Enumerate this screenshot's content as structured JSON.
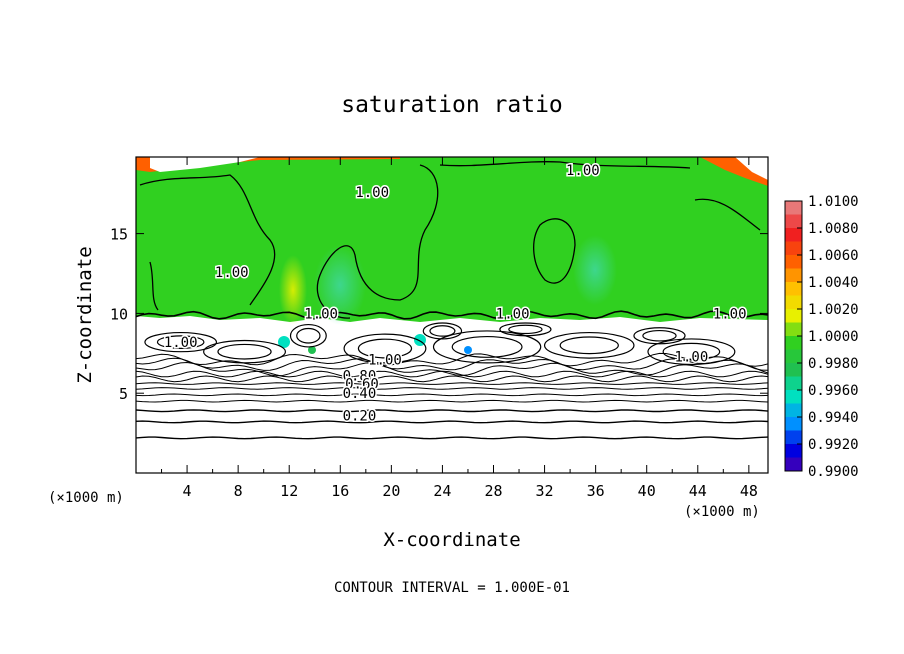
{
  "chart_data": {
    "type": "heatmap",
    "title": "saturation ratio",
    "xlabel": "X-coordinate",
    "ylabel": "Z-coordinate",
    "x_unit": "(×1000 m)",
    "y_unit": "(×1000 m)",
    "xlim": [
      0,
      49.5
    ],
    "ylim": [
      0,
      19.8
    ],
    "x_ticks": [
      4,
      8,
      12,
      16,
      20,
      24,
      28,
      32,
      36,
      40,
      44,
      48
    ],
    "y_ticks": [
      5,
      10,
      15
    ],
    "footer": "CONTOUR INTERVAL = 1.000E-01",
    "colorbar": {
      "levels": [
        "1.0100",
        "1.0080",
        "1.0060",
        "1.0040",
        "1.0020",
        "1.0000",
        "0.9980",
        "0.9960",
        "0.9940",
        "0.9920",
        "0.9900"
      ],
      "colors": [
        "#e87878",
        "#f02020",
        "#ff6000",
        "#ffc000",
        "#e8f000",
        "#30d020",
        "#20c050",
        "#00e0c0",
        "#0090ff",
        "#0000e0",
        "#6000a0"
      ]
    },
    "contour_labels": [
      {
        "text": "1.00",
        "x": 35,
        "z": 19.0
      },
      {
        "text": "1.00",
        "x": 18.5,
        "z": 17.6
      },
      {
        "text": "1.00",
        "x": 7.5,
        "z": 12.6
      },
      {
        "text": "1.00",
        "x": 14.5,
        "z": 10.0
      },
      {
        "text": "1.00",
        "x": 29.5,
        "z": 10.0
      },
      {
        "text": "1.00",
        "x": 46.5,
        "z": 10.0
      },
      {
        "text": "1.00",
        "x": 3.5,
        "z": 8.2
      },
      {
        "text": "1.00",
        "x": 19.5,
        "z": 7.1
      },
      {
        "text": "1.00",
        "x": 43.5,
        "z": 7.3
      },
      {
        "text": "0.80",
        "x": 17.5,
        "z": 6.1
      },
      {
        "text": "0.60",
        "x": 17.7,
        "z": 5.6
      },
      {
        "text": "0.40",
        "x": 17.5,
        "z": 5.0
      },
      {
        "text": "0.20",
        "x": 17.5,
        "z": 3.6
      }
    ]
  }
}
